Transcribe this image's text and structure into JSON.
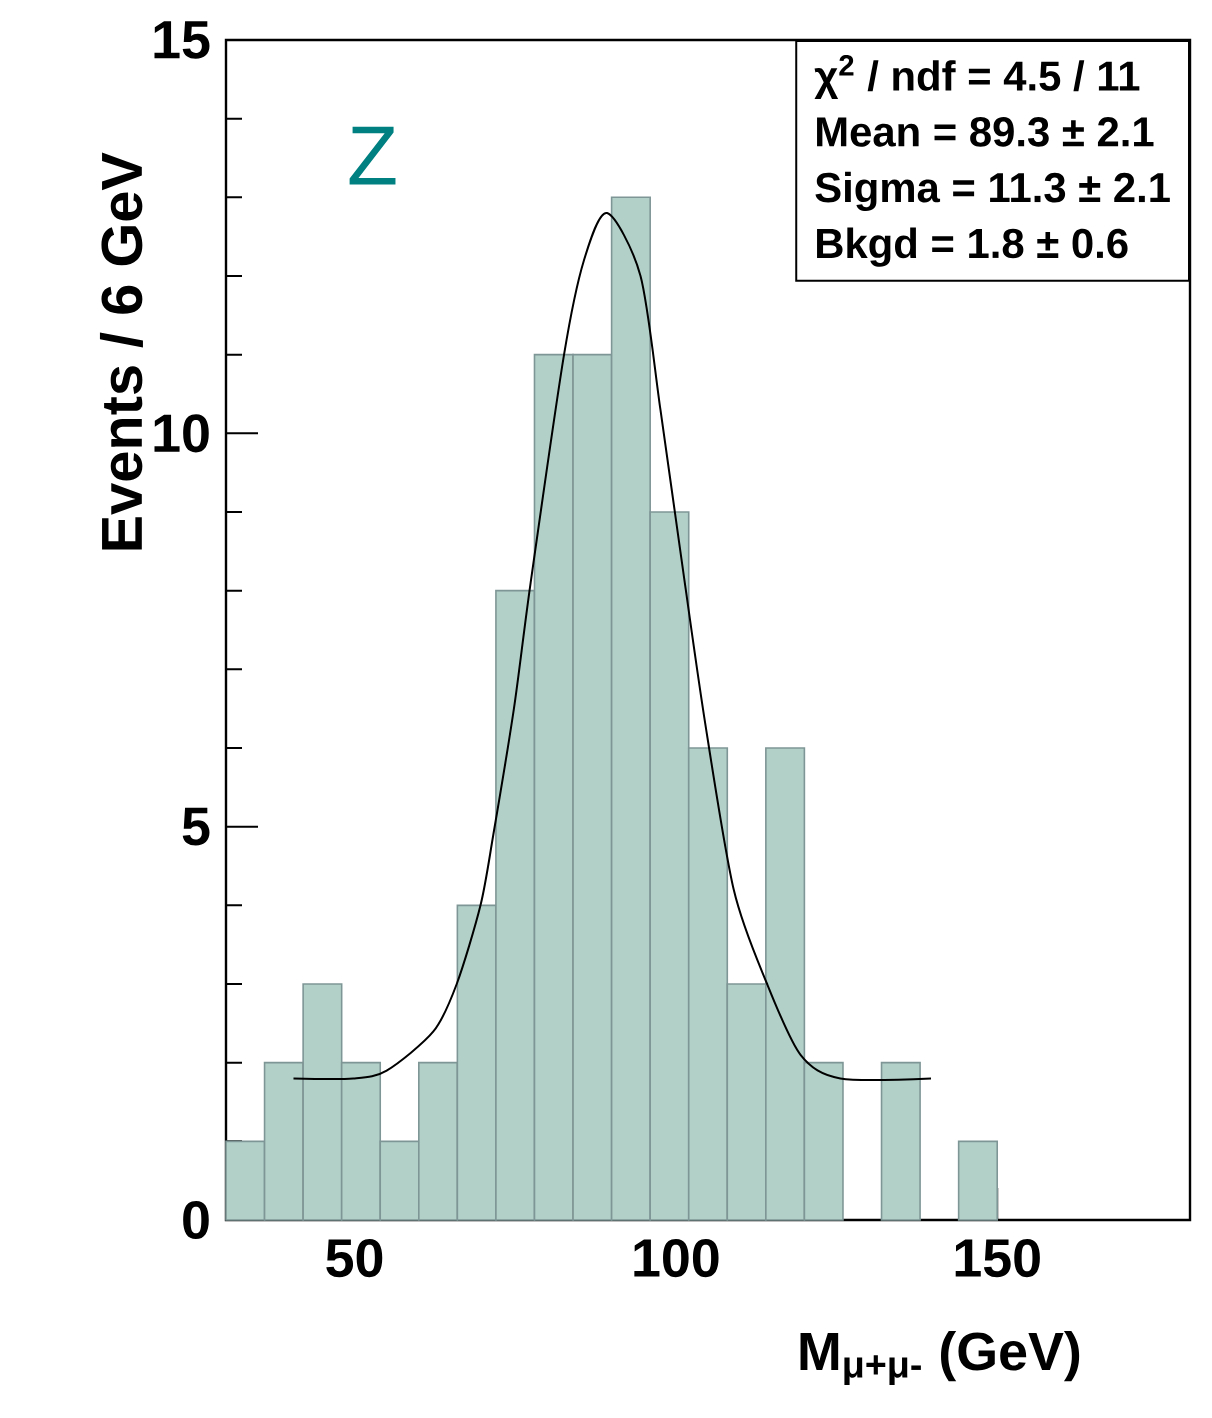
{
  "chart_data": {
    "type": "histogram",
    "xlabel": "M$_{μ+μ-}$  (GeV)",
    "ylabel": "Events / 6  GeV",
    "xlim": [
      30,
      180
    ],
    "ylim": [
      0,
      15
    ],
    "xticks": [
      50,
      100,
      150
    ],
    "yticks": [
      0,
      5,
      10,
      15
    ],
    "bins": [
      30,
      36,
      42,
      48,
      54,
      60,
      66,
      72,
      78,
      84,
      90,
      96,
      102,
      108,
      114,
      120,
      126,
      132,
      138,
      144,
      150,
      156,
      162,
      168,
      174,
      180
    ],
    "series": [
      {
        "color": "#b2d0c8",
        "values": [
          1,
          2,
          3,
          2,
          1,
          2,
          4,
          8,
          11,
          11,
          13,
          9,
          6,
          3,
          6,
          2,
          0,
          2,
          0,
          1,
          0,
          0,
          0,
          0,
          0
        ]
      },
      {
        "type": "line",
        "color": "#000000",
        "x": [
          40.5,
          49.8,
          55.0,
          62.3,
          65.9,
          69.6,
          71.6,
          74.8,
          77.4,
          82.6,
          85.7,
          89.3,
          94.5,
          97.6,
          100.7,
          104.4,
          109.0,
          114.2,
          119.4,
          125.6,
          139.7
        ],
        "values": [
          1.8,
          1.8,
          1.9,
          2.4,
          3.0,
          4.0,
          4.9,
          6.5,
          8.1,
          11.0,
          12.2,
          12.8,
          12.0,
          10.3,
          8.5,
          6.4,
          4.2,
          3.0,
          2.1,
          1.8,
          1.8
        ]
      }
    ],
    "annotations": [
      "Z",
      "χ$^{2}$ / ndf = 4.5 / 11",
      "Mean  = 89.3 ± 2.1",
      "Sigma = 11.3 ± 2.1",
      "Bkgd  = 1.8 ± 0.6"
    ]
  }
}
